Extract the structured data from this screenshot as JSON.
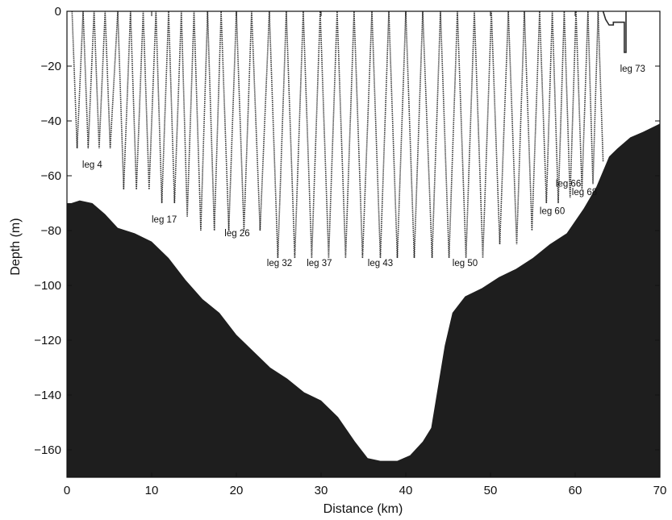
{
  "chart_data": {
    "type": "line",
    "title": "",
    "xlabel": "Distance (km)",
    "ylabel": "Depth (m)",
    "xlim": [
      0,
      70
    ],
    "ylim": [
      -170,
      0
    ],
    "xticks": [
      0,
      10,
      20,
      30,
      40,
      50,
      60,
      70
    ],
    "yticks": [
      0,
      -20,
      -40,
      -60,
      -80,
      -100,
      -120,
      -140,
      -160
    ],
    "ytick_labels": [
      "0",
      "−20",
      "−40",
      "−60",
      "−80",
      "−100",
      "−120",
      "−140",
      "−160"
    ],
    "grid": false,
    "colors": {
      "seabed": "#1e1e1e",
      "track": "#2a2a2a",
      "axis": "#111111"
    },
    "bathymetry": {
      "x": [
        0,
        0.5,
        1.5,
        3,
        4.5,
        6,
        8,
        10,
        12,
        14,
        16,
        18,
        20,
        22,
        24,
        26,
        28,
        30,
        32,
        34,
        35.5,
        37,
        39,
        40.5,
        42,
        43,
        43.8,
        44.6,
        45.5,
        47,
        49,
        51,
        53,
        55,
        57,
        59,
        61,
        62.5,
        64,
        65,
        66.5,
        68,
        70
      ],
      "depth": [
        -70,
        -70,
        -69,
        -70,
        -74,
        -79,
        -81,
        -84,
        -90,
        -98,
        -105,
        -110,
        -118,
        -124,
        -130,
        -134,
        -139,
        -142,
        -148,
        -157,
        -163,
        -164,
        -164,
        -162,
        -157,
        -152,
        -137,
        -122,
        -110,
        -104,
        -101,
        -97,
        -94,
        -90,
        -85,
        -81,
        -72,
        -64,
        -53,
        -50,
        -46,
        -44,
        -41
      ]
    },
    "glider_track": {
      "x": [
        0.6,
        1.2,
        1.9,
        2.5,
        3.2,
        3.8,
        4.5,
        5.1,
        6.0,
        6.7,
        7.5,
        8.2,
        9.0,
        9.7,
        10.5,
        11.2,
        12.0,
        12.7,
        13.5,
        14.2,
        15.0,
        15.8,
        16.6,
        17.4,
        18.2,
        19.1,
        20.0,
        20.9,
        21.8,
        22.8,
        23.9,
        24.9,
        25.9,
        26.9,
        27.9,
        28.9,
        29.9,
        30.9,
        31.9,
        32.9,
        33.9,
        34.9,
        36.0,
        37.0,
        38.0,
        39.0,
        40.0,
        41.0,
        42.0,
        43.1,
        44.1,
        45.1,
        46.1,
        47.1,
        48.1,
        49.1,
        50.1,
        51.1,
        52.1,
        53.1,
        54.0,
        54.9,
        55.8,
        56.6,
        57.3,
        58.0,
        58.7,
        59.4,
        60.1,
        60.8,
        61.5,
        62.1,
        62.7,
        63.3
      ],
      "depth": [
        0,
        -50,
        0,
        -50,
        0,
        -50,
        0,
        -50,
        0,
        -65,
        0,
        -65,
        0,
        -65,
        0,
        -70,
        0,
        -70,
        0,
        -75,
        0,
        -80,
        0,
        -80,
        0,
        -80,
        0,
        -80,
        0,
        -80,
        0,
        -90,
        0,
        -90,
        0,
        -90,
        0,
        -90,
        0,
        -90,
        0,
        -90,
        0,
        -90,
        0,
        -90,
        0,
        -90,
        0,
        -90,
        0,
        -90,
        0,
        -90,
        0,
        -90,
        0,
        -85,
        0,
        -85,
        0,
        -80,
        0,
        -70,
        0,
        -70,
        0,
        -68,
        0,
        -65,
        0,
        -63,
        0,
        -55
      ]
    },
    "surface_segment": {
      "x": [
        63.3,
        63.6,
        64.0,
        64.5,
        64.5,
        65.0,
        65.8,
        65.8,
        66.0,
        66.0
      ],
      "depth": [
        0,
        -3,
        -5,
        -5,
        -4,
        -4,
        -4,
        -15,
        -15,
        0
      ]
    },
    "annotations": [
      {
        "text": "leg 4",
        "x": 1.8,
        "y": -57
      },
      {
        "text": "leg 17",
        "x": 10.0,
        "y": -77
      },
      {
        "text": "leg 26",
        "x": 18.6,
        "y": -82
      },
      {
        "text": "leg 32",
        "x": 23.6,
        "y": -93
      },
      {
        "text": "leg 37",
        "x": 28.3,
        "y": -93
      },
      {
        "text": "leg 43",
        "x": 35.5,
        "y": -93
      },
      {
        "text": "leg 50",
        "x": 45.5,
        "y": -93
      },
      {
        "text": "leg 60",
        "x": 55.8,
        "y": -74
      },
      {
        "text": "leg 66",
        "x": 57.7,
        "y": -64
      },
      {
        "text": "leg 68",
        "x": 59.6,
        "y": -67
      },
      {
        "text": "leg 73",
        "x": 65.3,
        "y": -22
      }
    ]
  }
}
